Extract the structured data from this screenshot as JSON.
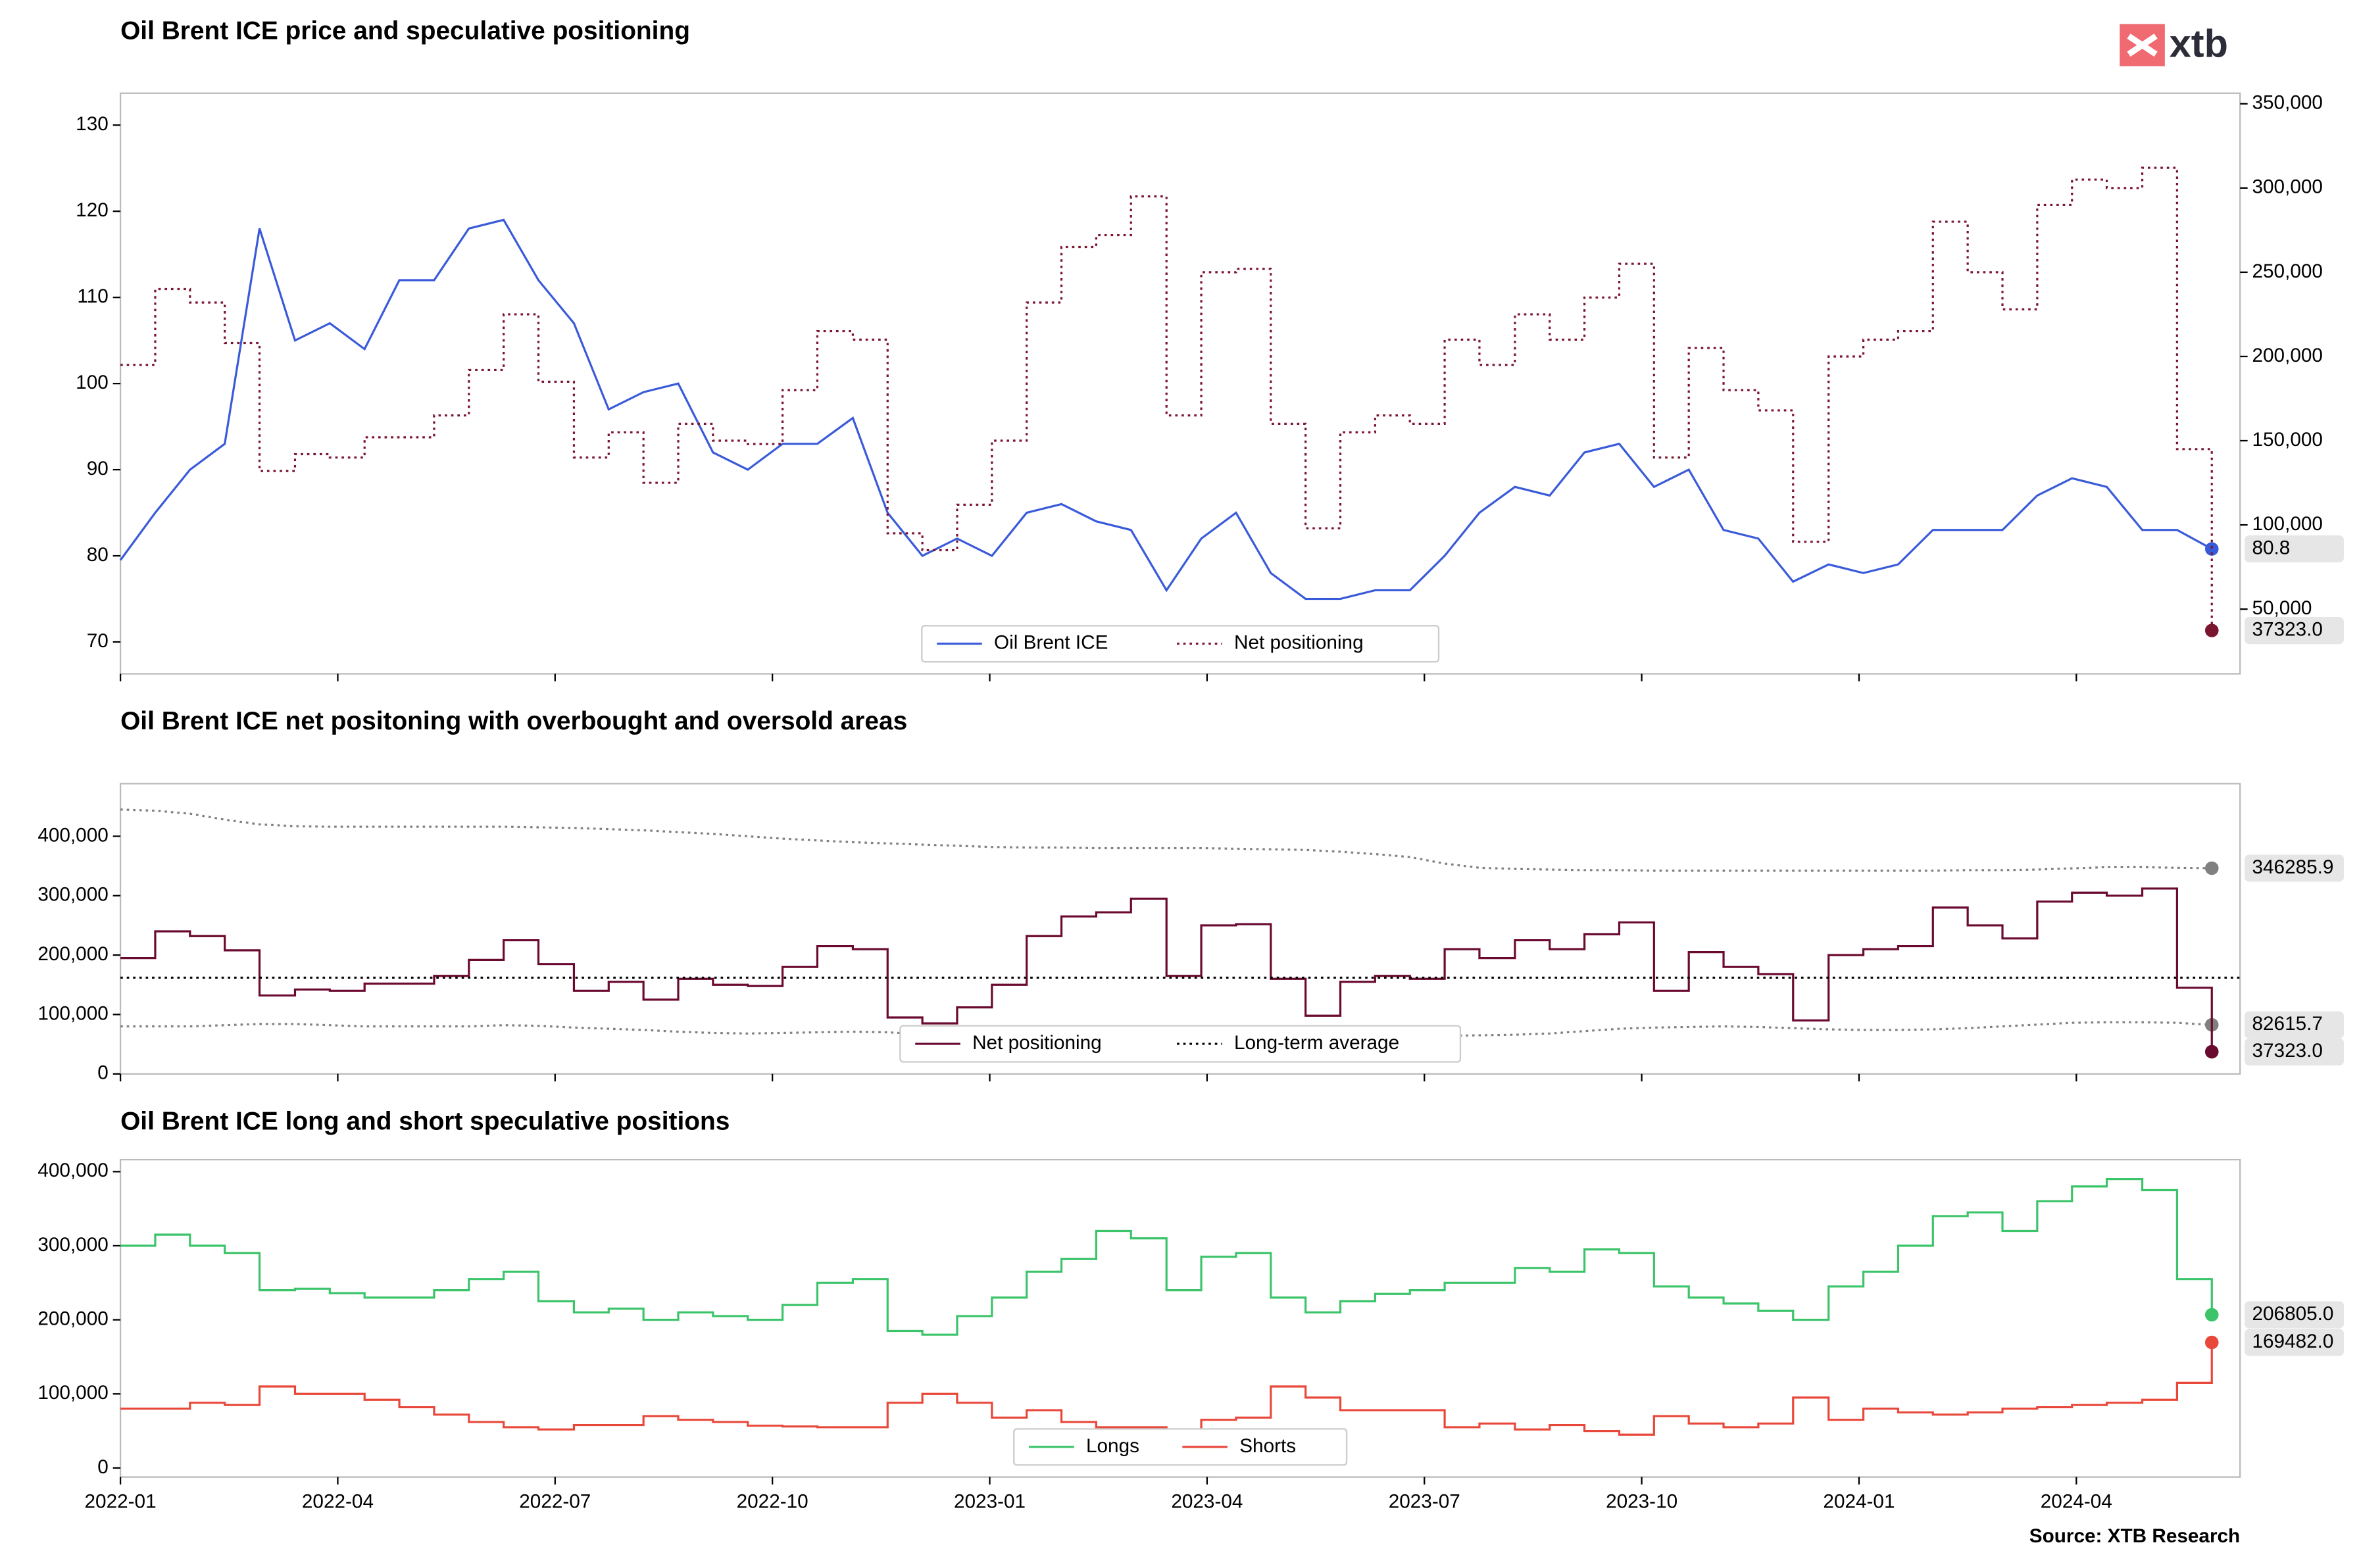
{
  "logo": "xtb",
  "source": "Source: XTB Research",
  "chart_data": [
    {
      "type": "line",
      "title": "Oil Brent ICE price and speculative positioning",
      "legend": "lower center",
      "x": [
        0,
        0.48,
        0.96,
        1.44,
        1.92,
        2.41,
        2.89,
        3.37,
        3.85,
        4.33,
        4.81,
        5.29,
        5.77,
        6.26,
        6.74,
        7.22,
        7.7,
        8.18,
        8.66,
        9.14,
        9.62,
        10.11,
        10.59,
        11.07,
        11.55,
        12.03,
        12.51,
        12.99,
        13.47,
        13.95,
        14.44,
        14.92,
        15.4,
        15.88,
        16.36,
        16.84,
        17.32,
        17.8,
        18.28,
        18.76,
        19.25,
        19.73,
        20.21,
        20.69,
        21.17,
        21.65,
        22.13,
        22.61,
        23.09,
        23.58,
        24.06,
        24.54,
        25.02,
        25.5,
        25.98,
        26.46,
        26.94,
        27.42,
        27.91,
        28.39,
        28.87
      ],
      "xlim": [
        0,
        29.26
      ],
      "ylim": [
        66.3,
        133.7
      ],
      "yticks": [
        70,
        80,
        90,
        100,
        110,
        120,
        130
      ],
      "y2lim": [
        11600,
        356250
      ],
      "y2ticks": [
        {
          "value": 50000,
          "label": "50,000"
        },
        {
          "value": 100000,
          "label": "100,000"
        },
        {
          "value": 150000,
          "label": "150,000"
        },
        {
          "value": 200000,
          "label": "200,000"
        },
        {
          "value": 250000,
          "label": "250,000"
        },
        {
          "value": 300000,
          "label": "300,000"
        },
        {
          "value": 350000,
          "label": "350,000"
        }
      ],
      "series": [
        {
          "name": "Oil Brent ICE",
          "color": "#3a5bd9",
          "end_label": true,
          "values": [
            79.5,
            85,
            90,
            93,
            118,
            105,
            107,
            104,
            112,
            112,
            118,
            119,
            112,
            107,
            97,
            99,
            100,
            92,
            90,
            93,
            93,
            96,
            85,
            80,
            82,
            80,
            85,
            86,
            84,
            83,
            76,
            82,
            85,
            78,
            75,
            75,
            76,
            76,
            80,
            85,
            88,
            87,
            92,
            93,
            88,
            90,
            83,
            82,
            77,
            79,
            78,
            79,
            83,
            83,
            83,
            87,
            89,
            88,
            83,
            83,
            80.8
          ]
        },
        {
          "name": "Net positioning",
          "color": "#7a1530",
          "axis": "y2",
          "dash": "dotted",
          "drawstyle": "steps-post",
          "end_label": true,
          "values": [
            195000,
            240000,
            232000,
            208000,
            132000,
            142000,
            140000,
            152000,
            152000,
            165000,
            192000,
            225000,
            185000,
            140000,
            155000,
            125000,
            160000,
            150000,
            148000,
            180000,
            215000,
            210000,
            95000,
            85000,
            112000,
            150000,
            232000,
            265000,
            272000,
            295000,
            165000,
            250000,
            252000,
            160000,
            98000,
            155000,
            165000,
            160000,
            210000,
            195000,
            225000,
            210000,
            235000,
            255000,
            140000,
            205000,
            180000,
            168000,
            90000,
            200000,
            210000,
            215000,
            280000,
            250000,
            228000,
            290000,
            305000,
            300000,
            312000,
            145000,
            37323
          ],
          "value_labels": [
            null,
            null,
            null,
            null,
            null,
            null,
            null,
            null,
            null,
            null,
            null,
            null,
            null,
            null,
            null,
            null,
            null,
            null,
            null,
            null,
            null,
            null,
            null,
            null,
            null,
            null,
            null,
            null,
            null,
            null,
            null,
            null,
            null,
            null,
            null,
            null,
            null,
            null,
            null,
            null,
            null,
            null,
            null,
            null,
            null,
            null,
            null,
            null,
            null,
            null,
            null,
            null,
            null,
            null,
            null,
            null,
            null,
            null,
            null,
            null,
            "37323.0"
          ]
        }
      ]
    },
    {
      "type": "line",
      "title": "Oil Brent ICE net positoning with overbought and oversold areas",
      "legend": "lower center",
      "x": [
        0,
        0.48,
        0.96,
        1.44,
        1.92,
        2.41,
        2.89,
        3.37,
        3.85,
        4.33,
        4.81,
        5.29,
        5.77,
        6.26,
        6.74,
        7.22,
        7.7,
        8.18,
        8.66,
        9.14,
        9.62,
        10.11,
        10.59,
        11.07,
        11.55,
        12.03,
        12.51,
        12.99,
        13.47,
        13.95,
        14.44,
        14.92,
        15.4,
        15.88,
        16.36,
        16.84,
        17.32,
        17.8,
        18.28,
        18.76,
        19.25,
        19.73,
        20.21,
        20.69,
        21.17,
        21.65,
        22.13,
        22.61,
        23.09,
        23.58,
        24.06,
        24.54,
        25.02,
        25.5,
        25.98,
        26.46,
        26.94,
        27.42,
        27.91,
        28.39,
        28.87
      ],
      "xlim": [
        0,
        29.26
      ],
      "ylim": [
        0,
        488600
      ],
      "yticks": [
        0,
        {
          "value": 100000,
          "label": "100,000"
        },
        {
          "value": 200000,
          "label": "200,000"
        },
        {
          "value": 300000,
          "label": "300,000"
        },
        {
          "value": 400000,
          "label": "400,000"
        }
      ],
      "series": [
        {
          "color": "#808080",
          "dash": "dotted",
          "end_label": true,
          "values": [
            445000,
            443000,
            438000,
            428000,
            420000,
            417000,
            416000,
            416000,
            416000,
            416000,
            416000,
            416000,
            415000,
            414000,
            412000,
            410000,
            407000,
            404000,
            400000,
            396000,
            393000,
            390000,
            388000,
            386000,
            384000,
            382000,
            381000,
            381000,
            380000,
            380000,
            380000,
            380000,
            379000,
            378000,
            377000,
            374000,
            370000,
            365000,
            354000,
            347000,
            345000,
            344000,
            343000,
            343000,
            342000,
            342000,
            342000,
            342000,
            342000,
            342000,
            342000,
            342000,
            342000,
            343000,
            343000,
            344000,
            346000,
            348000,
            348000,
            347000,
            346285.9
          ]
        },
        {
          "color": "#808080",
          "dash": "dotted",
          "end_label": true,
          "values": [
            80000,
            80000,
            80000,
            82000,
            84000,
            84000,
            82000,
            80000,
            80000,
            80000,
            80000,
            82000,
            81000,
            78000,
            76000,
            74000,
            71000,
            69000,
            68000,
            69000,
            70000,
            71000,
            70000,
            67000,
            65000,
            64000,
            63000,
            63000,
            63000,
            64000,
            64000,
            64000,
            64000,
            64000,
            64000,
            64000,
            64000,
            64000,
            64000,
            65000,
            66000,
            68000,
            72000,
            76000,
            78000,
            79000,
            80000,
            79000,
            77000,
            75000,
            74000,
            74000,
            75000,
            77000,
            80000,
            83000,
            86000,
            87000,
            87000,
            86000,
            82615.7
          ]
        },
        {
          "name": "Net positioning",
          "color": "#6b0a30",
          "drawstyle": "steps-post",
          "end_label": true,
          "values": [
            195000,
            240000,
            232000,
            208000,
            132000,
            142000,
            140000,
            152000,
            152000,
            165000,
            192000,
            225000,
            185000,
            140000,
            155000,
            125000,
            160000,
            150000,
            148000,
            180000,
            215000,
            210000,
            95000,
            85000,
            112000,
            150000,
            232000,
            265000,
            272000,
            295000,
            165000,
            250000,
            252000,
            160000,
            98000,
            155000,
            165000,
            160000,
            210000,
            195000,
            225000,
            210000,
            235000,
            255000,
            140000,
            205000,
            180000,
            168000,
            90000,
            200000,
            210000,
            215000,
            280000,
            250000,
            228000,
            290000,
            305000,
            300000,
            312000,
            145000,
            37323
          ],
          "value_labels": [
            null,
            null,
            null,
            null,
            null,
            null,
            null,
            null,
            null,
            null,
            null,
            null,
            null,
            null,
            null,
            null,
            null,
            null,
            null,
            null,
            null,
            null,
            null,
            null,
            null,
            null,
            null,
            null,
            null,
            null,
            null,
            null,
            null,
            null,
            null,
            null,
            null,
            null,
            null,
            null,
            null,
            null,
            null,
            null,
            null,
            null,
            null,
            null,
            null,
            null,
            null,
            null,
            null,
            null,
            null,
            null,
            null,
            null,
            null,
            null,
            "37323.0"
          ]
        },
        {
          "name": "Long-term average",
          "color": "#000000",
          "dash": "dotted",
          "value": 162000
        }
      ]
    },
    {
      "type": "line",
      "title": "Oil Brent ICE long and short speculative positions",
      "legend": "lower center",
      "x": [
        0,
        0.48,
        0.96,
        1.44,
        1.92,
        2.41,
        2.89,
        3.37,
        3.85,
        4.33,
        4.81,
        5.29,
        5.77,
        6.26,
        6.74,
        7.22,
        7.7,
        8.18,
        8.66,
        9.14,
        9.62,
        10.11,
        10.59,
        11.07,
        11.55,
        12.03,
        12.51,
        12.99,
        13.47,
        13.95,
        14.44,
        14.92,
        15.4,
        15.88,
        16.36,
        16.84,
        17.32,
        17.8,
        18.28,
        18.76,
        19.25,
        19.73,
        20.21,
        20.69,
        21.17,
        21.65,
        22.13,
        22.61,
        23.09,
        23.58,
        24.06,
        24.54,
        25.02,
        25.5,
        25.98,
        26.46,
        26.94,
        27.42,
        27.91,
        28.39,
        28.87
      ],
      "xlim": [
        0,
        29.26
      ],
      "ylim": [
        -12200,
        416200
      ],
      "yticks": [
        0,
        {
          "value": 100000,
          "label": "100,000"
        },
        {
          "value": 200000,
          "label": "200,000"
        },
        {
          "value": 300000,
          "label": "300,000"
        },
        {
          "value": 400000,
          "label": "400,000"
        }
      ],
      "xticks": [
        {
          "value": 0,
          "label": "2022-01"
        },
        {
          "value": 3,
          "label": "2022-04"
        },
        {
          "value": 6,
          "label": "2022-07"
        },
        {
          "value": 9,
          "label": "2022-10"
        },
        {
          "value": 12,
          "label": "2023-01"
        },
        {
          "value": 15,
          "label": "2023-04"
        },
        {
          "value": 18,
          "label": "2023-07"
        },
        {
          "value": 21,
          "label": "2023-10"
        },
        {
          "value": 24,
          "label": "2024-01"
        },
        {
          "value": 27,
          "label": "2024-04"
        }
      ],
      "series": [
        {
          "name": "Longs",
          "color": "#3cc46a",
          "drawstyle": "steps-post",
          "end_label": true,
          "values": [
            300000,
            315000,
            300000,
            290000,
            240000,
            242000,
            236000,
            230000,
            230000,
            240000,
            255000,
            265000,
            225000,
            210000,
            215000,
            200000,
            210000,
            205000,
            200000,
            220000,
            250000,
            255000,
            185000,
            180000,
            205000,
            230000,
            265000,
            282000,
            320000,
            310000,
            240000,
            285000,
            290000,
            230000,
            210000,
            225000,
            235000,
            240000,
            250000,
            250000,
            270000,
            265000,
            295000,
            290000,
            245000,
            230000,
            222000,
            212000,
            200000,
            245000,
            265000,
            300000,
            340000,
            345000,
            320000,
            360000,
            380000,
            390000,
            375000,
            255000,
            206805
          ],
          "value_labels": [
            null,
            null,
            null,
            null,
            null,
            null,
            null,
            null,
            null,
            null,
            null,
            null,
            null,
            null,
            null,
            null,
            null,
            null,
            null,
            null,
            null,
            null,
            null,
            null,
            null,
            null,
            null,
            null,
            null,
            null,
            null,
            null,
            null,
            null,
            null,
            null,
            null,
            null,
            null,
            null,
            null,
            null,
            null,
            null,
            null,
            null,
            null,
            null,
            null,
            null,
            null,
            null,
            null,
            null,
            null,
            null,
            null,
            null,
            null,
            null,
            "206805.0"
          ]
        },
        {
          "name": "Shorts",
          "color": "#e8483a",
          "drawstyle": "steps-post",
          "end_label": true,
          "values": [
            80000,
            80000,
            88000,
            85000,
            110000,
            100000,
            100000,
            92000,
            82000,
            72000,
            62000,
            55000,
            52000,
            58000,
            58000,
            70000,
            65000,
            62000,
            57000,
            56000,
            55000,
            55000,
            88000,
            100000,
            88000,
            68000,
            78000,
            62000,
            55000,
            55000,
            50000,
            65000,
            68000,
            110000,
            95000,
            78000,
            78000,
            78000,
            55000,
            60000,
            52000,
            58000,
            50000,
            45000,
            70000,
            60000,
            55000,
            60000,
            95000,
            65000,
            80000,
            75000,
            72000,
            75000,
            80000,
            82000,
            85000,
            88000,
            92000,
            115000,
            169482
          ],
          "value_labels": [
            null,
            null,
            null,
            null,
            null,
            null,
            null,
            null,
            null,
            null,
            null,
            null,
            null,
            null,
            null,
            null,
            null,
            null,
            null,
            null,
            null,
            null,
            null,
            null,
            null,
            null,
            null,
            null,
            null,
            null,
            null,
            null,
            null,
            null,
            null,
            null,
            null,
            null,
            null,
            null,
            null,
            null,
            null,
            null,
            null,
            null,
            null,
            null,
            null,
            null,
            null,
            null,
            null,
            null,
            null,
            null,
            null,
            null,
            null,
            null,
            "169482.0"
          ]
        }
      ]
    }
  ]
}
